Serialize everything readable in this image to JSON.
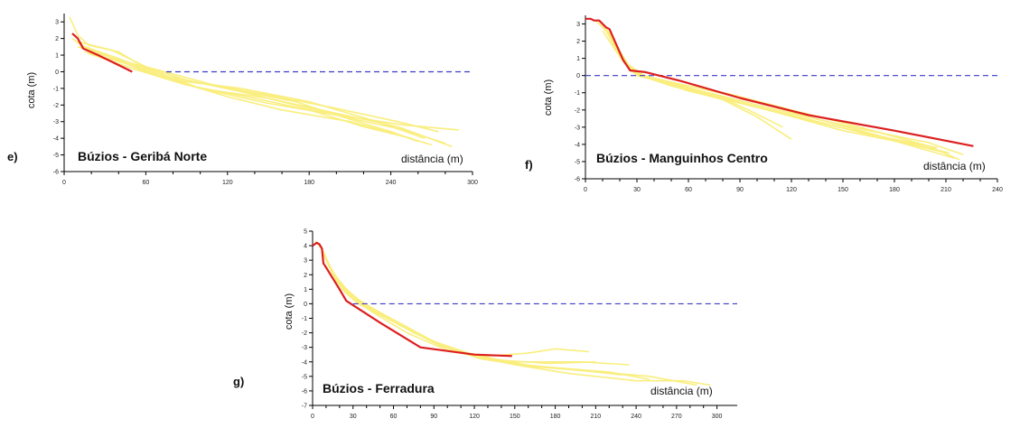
{
  "chart_data": [
    {
      "panel_label": "e)",
      "type": "line",
      "title": "Búzios - Geribá Norte",
      "xlabel": "distância (m)",
      "ylabel": "cota (m)",
      "xlim": [
        0,
        300
      ],
      "ylim": [
        -6,
        3.5
      ],
      "xticks": [
        0,
        60,
        120,
        180,
        240,
        300
      ],
      "yticks": [
        3,
        2,
        1,
        0,
        -1,
        -2,
        -3,
        -4,
        -5,
        -6
      ],
      "reference_level": {
        "y": 0,
        "x_start": 75,
        "x_end": 300,
        "style": "dashed",
        "color": "#3c3cc8"
      },
      "highlight_series": {
        "color": "#dd1f1f",
        "x": [
          6,
          10,
          12,
          14,
          25,
          35,
          45,
          50
        ],
        "y": [
          2.3,
          2.0,
          1.7,
          1.4,
          1.0,
          0.6,
          0.2,
          0.0
        ]
      },
      "background_series_color": "#f9ee7e",
      "background_series": [
        {
          "x": [
            4,
            10,
            18,
            40,
            60,
            100,
            150,
            200,
            250,
            290
          ],
          "y": [
            3.3,
            2.2,
            1.6,
            1.2,
            0.2,
            -1.0,
            -1.9,
            -2.6,
            -3.2,
            -3.5
          ]
        },
        {
          "x": [
            6,
            14,
            30,
            60,
            100,
            150,
            200,
            245,
            285
          ],
          "y": [
            2.0,
            1.5,
            1.0,
            0.0,
            -1.0,
            -1.6,
            -2.5,
            -3.3,
            -4.5
          ]
        },
        {
          "x": [
            8,
            20,
            50,
            90,
            130,
            170,
            210,
            250,
            280
          ],
          "y": [
            1.9,
            1.2,
            0.5,
            -0.5,
            -1.2,
            -2.0,
            -2.8,
            -3.5,
            -4.3
          ]
        },
        {
          "x": [
            10,
            30,
            55,
            80,
            130,
            180,
            230,
            265
          ],
          "y": [
            1.5,
            1.0,
            0.2,
            -0.5,
            -1.0,
            -1.8,
            -3.0,
            -4.0
          ]
        },
        {
          "x": [
            12,
            40,
            70,
            120,
            170,
            200,
            240,
            260
          ],
          "y": [
            1.6,
            0.8,
            -0.2,
            -1.0,
            -1.8,
            -2.6,
            -3.6,
            -4.2
          ]
        },
        {
          "x": [
            15,
            45,
            80,
            120,
            160,
            210,
            250,
            270
          ],
          "y": [
            1.2,
            0.5,
            -0.5,
            -1.5,
            -2.3,
            -3.0,
            -3.9,
            -4.4
          ]
        },
        {
          "x": [
            10,
            35,
            60,
            110,
            150,
            200,
            245,
            275
          ],
          "y": [
            1.8,
            1.3,
            0.3,
            -0.8,
            -1.4,
            -2.2,
            -3.0,
            -3.6
          ]
        },
        {
          "x": [
            18,
            50,
            90,
            140,
            180,
            220,
            255
          ],
          "y": [
            1.1,
            0.2,
            -0.8,
            -1.6,
            -2.3,
            -3.3,
            -4.0
          ]
        }
      ]
    },
    {
      "panel_label": "f)",
      "type": "line",
      "title": "Búzios - Manguinhos Centro",
      "xlabel": "distância (m)",
      "ylabel": "cota (m)",
      "xlim": [
        0,
        240
      ],
      "ylim": [
        -6,
        3.5
      ],
      "xticks": [
        0,
        30,
        60,
        90,
        120,
        150,
        180,
        210,
        240
      ],
      "yticks": [
        3,
        2,
        1,
        0,
        -1,
        -2,
        -3,
        -4,
        -5,
        -6
      ],
      "reference_level": {
        "y": 0,
        "x_start": 0,
        "x_end": 240,
        "style": "dashed",
        "color": "#3c3cc8"
      },
      "highlight_series": {
        "color": "#dd1f1f",
        "x": [
          0,
          3,
          5,
          8,
          12,
          14,
          18,
          22,
          26,
          35,
          55,
          90,
          130,
          180,
          226
        ],
        "y": [
          3.3,
          3.3,
          3.2,
          3.2,
          2.8,
          2.7,
          1.8,
          0.9,
          0.3,
          0.2,
          -0.3,
          -1.3,
          -2.3,
          -3.2,
          -4.1
        ]
      },
      "background_series_color": "#f9ee7e",
      "background_series": [
        {
          "x": [
            6,
            12,
            18,
            24,
            30,
            50,
            80,
            120,
            160,
            200,
            220
          ],
          "y": [
            3.2,
            2.6,
            1.5,
            0.6,
            0.0,
            -0.5,
            -1.2,
            -2.2,
            -3.1,
            -3.9,
            -4.6
          ]
        },
        {
          "x": [
            8,
            14,
            20,
            26,
            34,
            60,
            100,
            140,
            180,
            215
          ],
          "y": [
            3.0,
            2.5,
            1.4,
            0.5,
            0.0,
            -0.8,
            -1.8,
            -2.8,
            -3.8,
            -4.8
          ]
        },
        {
          "x": [
            10,
            16,
            22,
            28,
            40,
            70,
            110,
            150,
            190,
            210
          ],
          "y": [
            2.8,
            2.2,
            1.0,
            0.2,
            -0.2,
            -1.0,
            -2.1,
            -3.2,
            -4.0,
            -4.5
          ]
        },
        {
          "x": [
            12,
            18,
            24,
            32,
            50,
            80,
            100,
            120
          ],
          "y": [
            2.7,
            1.8,
            0.6,
            0.0,
            -0.6,
            -1.4,
            -2.4,
            -3.7
          ]
        },
        {
          "x": [
            14,
            20,
            26,
            36,
            60,
            90,
            130,
            170,
            205
          ],
          "y": [
            2.4,
            1.3,
            0.3,
            -0.1,
            -0.9,
            -1.6,
            -2.6,
            -3.5,
            -4.2
          ]
        },
        {
          "x": [
            10,
            22,
            30,
            45,
            75,
            95,
            115
          ],
          "y": [
            2.6,
            0.8,
            0.1,
            -0.3,
            -1.1,
            -2.0,
            -3.0
          ]
        },
        {
          "x": [
            16,
            24,
            34,
            55,
            85,
            120,
            160,
            200,
            218
          ],
          "y": [
            2.0,
            0.7,
            0.0,
            -0.5,
            -1.1,
            -2.0,
            -3.0,
            -4.1,
            -4.9
          ]
        },
        {
          "x": [
            20,
            28,
            40,
            65,
            95,
            130,
            175,
            212
          ],
          "y": [
            1.2,
            0.2,
            -0.2,
            -0.7,
            -1.4,
            -2.4,
            -3.6,
            -4.5
          ]
        }
      ]
    },
    {
      "panel_label": "g)",
      "type": "line",
      "title": "Búzios - Ferradura",
      "xlabel": "distância (m)",
      "ylabel": "cota (m)",
      "xlim": [
        0,
        315
      ],
      "ylim": [
        -7,
        5
      ],
      "xticks": [
        0,
        30,
        60,
        90,
        120,
        150,
        180,
        210,
        240,
        270,
        300
      ],
      "yticks": [
        5,
        4,
        3,
        2,
        1,
        0,
        -1,
        -2,
        -3,
        -4,
        -5,
        -6,
        -7
      ],
      "reference_level": {
        "y": 0,
        "x_start": 30,
        "x_end": 315,
        "style": "dashed",
        "color": "#3c3cc8"
      },
      "highlight_series": {
        "color": "#dd1f1f",
        "x": [
          0,
          3,
          5,
          7,
          8,
          10,
          20,
          25,
          50,
          80,
          120,
          148
        ],
        "y": [
          4.0,
          4.2,
          4.1,
          3.8,
          2.8,
          2.5,
          1.0,
          0.2,
          -1.3,
          -3.0,
          -3.5,
          -3.6
        ]
      },
      "background_series_color": "#f9ee7e",
      "background_series": [
        {
          "x": [
            2,
            5,
            9,
            14,
            22,
            30,
            45,
            70,
            100,
            130,
            160,
            180,
            205
          ],
          "y": [
            4.3,
            4.0,
            3.4,
            2.2,
            1.0,
            0.3,
            -0.6,
            -2.0,
            -3.2,
            -3.6,
            -3.4,
            -3.1,
            -3.3
          ]
        },
        {
          "x": [
            4,
            8,
            12,
            18,
            28,
            40,
            60,
            90,
            120,
            150,
            200,
            235
          ],
          "y": [
            4.2,
            3.6,
            2.6,
            1.5,
            0.5,
            -0.2,
            -1.2,
            -2.6,
            -3.6,
            -4.0,
            -4.0,
            -4.2
          ]
        },
        {
          "x": [
            6,
            10,
            16,
            24,
            34,
            55,
            85,
            115,
            145,
            180,
            220,
            250
          ],
          "y": [
            3.9,
            3.0,
            1.9,
            0.8,
            0.0,
            -1.0,
            -2.4,
            -3.5,
            -4.1,
            -4.4,
            -4.7,
            -5.2
          ]
        },
        {
          "x": [
            8,
            14,
            20,
            30,
            45,
            65,
            95,
            125,
            160,
            200,
            250,
            285
          ],
          "y": [
            3.5,
            2.4,
            1.4,
            0.4,
            -0.4,
            -1.5,
            -2.9,
            -3.8,
            -4.3,
            -4.6,
            -5.0,
            -5.6
          ]
        },
        {
          "x": [
            10,
            16,
            26,
            38,
            55,
            80,
            110,
            150,
            190,
            240,
            275,
            295
          ],
          "y": [
            3.0,
            2.0,
            0.9,
            0.0,
            -0.9,
            -2.2,
            -3.4,
            -4.2,
            -4.8,
            -5.3,
            -5.3,
            -5.6
          ]
        },
        {
          "x": [
            12,
            20,
            30,
            50,
            75,
            105,
            140,
            175,
            210
          ],
          "y": [
            2.6,
            1.4,
            0.5,
            -0.6,
            -2.0,
            -3.2,
            -3.9,
            -4.1,
            -4.0
          ]
        },
        {
          "x": [
            14,
            24,
            36,
            60,
            90,
            125,
            165,
            200,
            230
          ],
          "y": [
            2.3,
            1.1,
            0.1,
            -1.1,
            -2.6,
            -3.7,
            -4.3,
            -4.6,
            -4.9
          ]
        }
      ]
    }
  ]
}
